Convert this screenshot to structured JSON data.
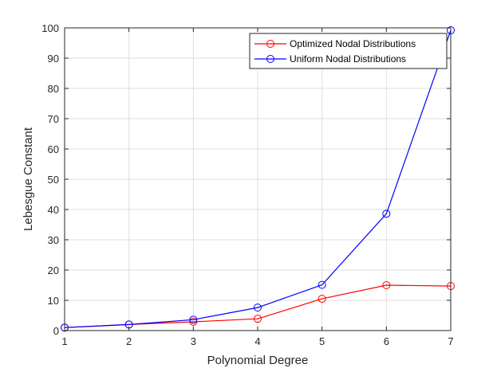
{
  "chart_data": {
    "type": "line",
    "title": "",
    "xlabel": "Polynomial Degree",
    "ylabel": "Lebesgue Constant",
    "xlim": [
      1,
      7
    ],
    "ylim": [
      0,
      100
    ],
    "xticks": [
      1,
      2,
      3,
      4,
      5,
      6,
      7
    ],
    "yticks": [
      0,
      10,
      20,
      30,
      40,
      50,
      60,
      70,
      80,
      90,
      100
    ],
    "grid": true,
    "legend_position": "top-right",
    "x": [
      1,
      2,
      3,
      4,
      5,
      6,
      7
    ],
    "series": [
      {
        "name": "Optimized Nodal Distributions",
        "color": "#ff0000",
        "marker": "circle",
        "values": [
          1.0,
          2.0,
          2.9,
          3.9,
          10.5,
          15.0,
          14.7
        ]
      },
      {
        "name": "Uniform Nodal Distributions",
        "color": "#0000ff",
        "marker": "circle",
        "values": [
          1.0,
          2.0,
          3.6,
          7.6,
          15.1,
          38.6,
          99.2
        ]
      }
    ]
  }
}
